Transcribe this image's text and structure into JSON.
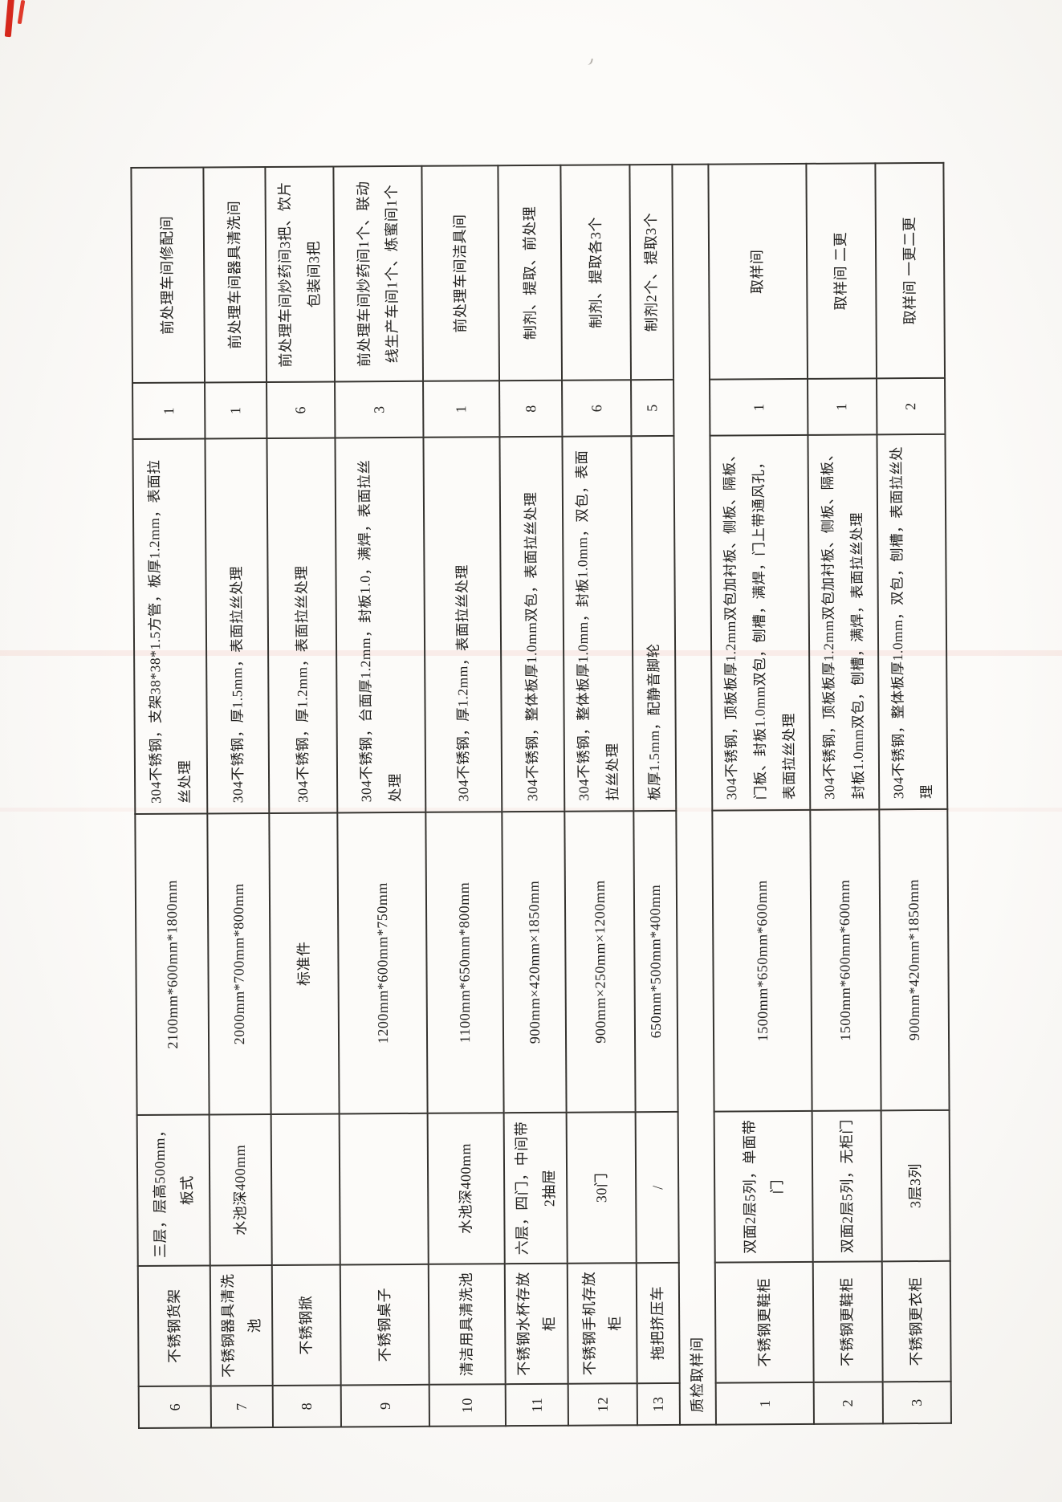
{
  "table": {
    "rows": [
      {
        "no": "6",
        "name": "不锈钢货架",
        "spec": "三层，层高500mm，板式",
        "size": "2100mm*600mm*1800mm",
        "material": "304不锈钢，支架38*38*1.5方管，板厚1.2mm，表面拉丝处理",
        "qty": "1",
        "location": "前处理车间修配间"
      },
      {
        "no": "7",
        "name": "不锈钢器具清洗池",
        "spec": "水池深400mm",
        "size": "2000mm*700mm*800mm",
        "material": "304不锈钢，厚1.5mm，表面拉丝处理",
        "qty": "1",
        "location": "前处理车间器具清洗间"
      },
      {
        "no": "8",
        "name": "不锈钢掀",
        "spec": "",
        "size": "标准件",
        "material": "304不锈钢，厚1.2mm，表面拉丝处理",
        "qty": "6",
        "location": "前处理车间炒药间3把、饮片包装间3把"
      },
      {
        "no": "9",
        "name": "不锈钢桌子",
        "spec": "",
        "size": "1200mm*600mm*750mm",
        "material": "304不锈钢，台面厚1.2mm，封板1.0，满焊，表面拉丝处理",
        "qty": "3",
        "location": "前处理车间炒药间1个、联动线生产车间1个、炼蜜间1个"
      },
      {
        "no": "10",
        "name": "清洁用具清洗池",
        "spec": "水池深400mm",
        "size": "1100mm*650mm*800mm",
        "material": "304不锈钢，厚1.2mm，表面拉丝处理",
        "qty": "1",
        "location": "前处理车间洁具间"
      },
      {
        "no": "11",
        "name": "不锈钢水杯存放柜",
        "spec": "六层，四门，中间带2抽屉",
        "size": "900mm×420mm×1850mm",
        "material": "304不锈钢，整体板厚1.0mm双包，表面拉丝处理",
        "qty": "8",
        "location": "制剂、提取、前处理"
      },
      {
        "no": "12",
        "name": "不锈钢手机存放柜",
        "spec": "30门",
        "size": "900mm×250mm×1200mm",
        "material": "304不锈钢，整体板厚1.0mm，封板1.0mm，双包，表面拉丝处理",
        "qty": "6",
        "location": "制剂、提取各3个"
      },
      {
        "no": "13",
        "name": "拖把挤压车",
        "spec": "/",
        "size": "650mm*500mm*400mm",
        "material": "板厚1.5mm，配静音脚轮",
        "qty": "5",
        "location": "制剂2个、提取3个"
      }
    ],
    "section_header": "质检取样间",
    "section_rows": [
      {
        "no": "1",
        "name": "不锈钢更鞋柜",
        "spec": "双面2层5列，单面带门",
        "size": "1500mm*650mm*600mm",
        "material": "304不锈钢，顶板板厚1.2mm双包加衬板、侧板、隔板、门板、封板1.0mm双包，刨槽，满焊，门上带通风孔，表面拉丝处理",
        "qty": "1",
        "location": "取样间"
      },
      {
        "no": "2",
        "name": "不锈钢更鞋柜",
        "spec": "双面2层5列，无柜门",
        "size": "1500mm*600mm*600mm",
        "material": "304不锈钢，顶板板厚1.2mm双包加衬板、侧板、隔板、封板1.0mm双包，刨槽，满焊，表面拉丝处理",
        "qty": "1",
        "location": "取样间 二更"
      },
      {
        "no": "3",
        "name": "不锈钢更衣柜",
        "spec": "3层3列",
        "size": "900mm*420mm*1850mm",
        "material": "304不锈钢，整体板厚1.0mm，双包，刨槽，表面拉丝处理",
        "qty": "2",
        "location": "取样间 一更二更"
      }
    ]
  }
}
